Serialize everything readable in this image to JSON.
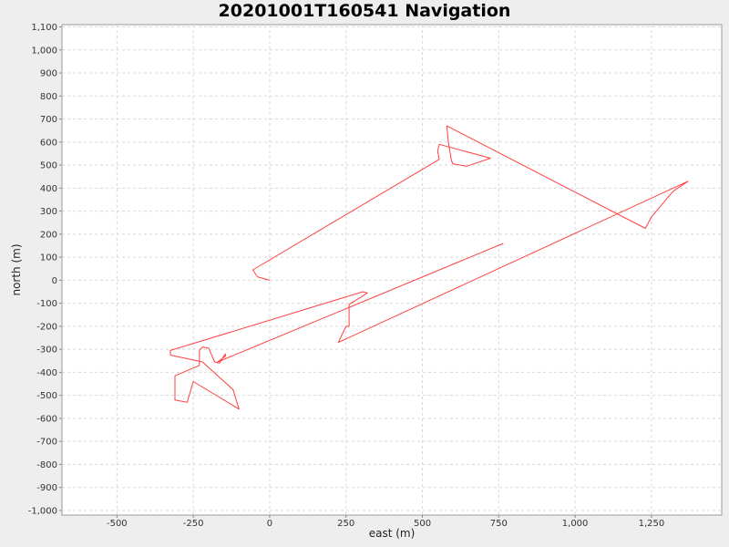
{
  "chart_data": {
    "type": "line",
    "title": "20201001T160541 Navigation",
    "xlabel": "east (m)",
    "ylabel": "north (m)",
    "xlim": [
      -680,
      1480
    ],
    "ylim": [
      -1020,
      1110
    ],
    "x_ticks": [
      -500,
      -250,
      0,
      250,
      500,
      750,
      1000,
      1250
    ],
    "x_tick_labels": [
      "-500",
      "-250",
      "0",
      "250",
      "500",
      "750",
      "1,000",
      "1,250"
    ],
    "y_ticks": [
      -1000,
      -900,
      -800,
      -700,
      -600,
      -500,
      -400,
      -300,
      -200,
      -100,
      0,
      100,
      200,
      300,
      400,
      500,
      600,
      700,
      800,
      900,
      1000,
      1100
    ],
    "y_tick_labels": [
      "-1,000",
      "-900",
      "-800",
      "-700",
      "-600",
      "-500",
      "-400",
      "-300",
      "-200",
      "-100",
      "0",
      "100",
      "200",
      "300",
      "400",
      "500",
      "600",
      "700",
      "800",
      "900",
      "1,000",
      "1,100"
    ],
    "grid": true,
    "series": [
      {
        "color": "#ff4040",
        "x": [
          0,
          -40,
          -55,
          555,
          550,
          555,
          723,
          645,
          600,
          595,
          585,
          580,
          1230,
          1250,
          1320,
          1370,
          225,
          250,
          250,
          260,
          260,
          320,
          305,
          -325,
          -325,
          -220,
          -120,
          -100,
          -250,
          -270,
          -310,
          -310,
          -230,
          -230,
          -220,
          -200,
          -180,
          -165,
          -145,
          -145,
          -170,
          765
        ],
        "y": [
          0,
          15,
          45,
          525,
          560,
          590,
          530,
          495,
          505,
          520,
          600,
          670,
          225,
          275,
          385,
          430,
          -270,
          -200,
          -200,
          -200,
          -105,
          -55,
          -50,
          -305,
          -325,
          -355,
          -475,
          -560,
          -440,
          -530,
          -520,
          -415,
          -370,
          -305,
          -290,
          -295,
          -355,
          -360,
          -320,
          -330,
          -355,
          160
        ]
      }
    ]
  }
}
